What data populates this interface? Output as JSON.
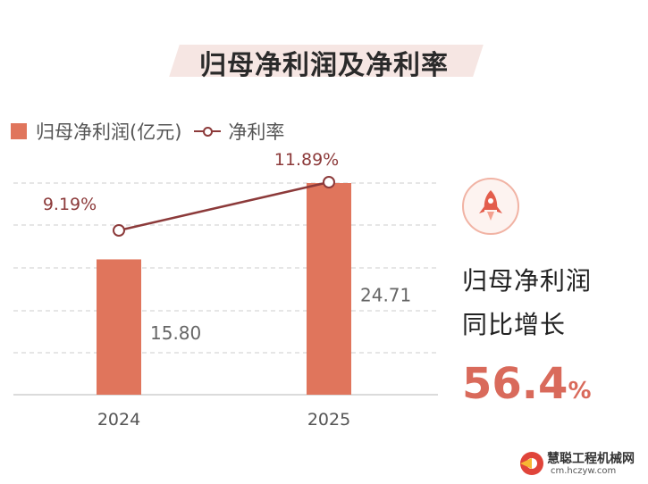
{
  "title": "归母净利润及净利率",
  "legend": {
    "bar_label": "归母净利润(亿元)",
    "line_label": "净利率"
  },
  "side_panel": {
    "label_line1": "归母净利润",
    "label_line2": "同比增长",
    "value": "56.4",
    "value_unit": "%",
    "icon": "rocket-icon"
  },
  "watermark": {
    "name": "慧聪工程机械网",
    "url": "cm.hczyw.com"
  },
  "colors": {
    "bar": "#e0755c",
    "line": "#8c3a3a",
    "line_label": "#8c3a3a",
    "bar_label": "#666666",
    "highlight": "#d96a5b"
  },
  "chart_data": {
    "type": "bar",
    "categories": [
      "2024",
      "2025"
    ],
    "series": [
      {
        "name": "归母净利润(亿元)",
        "type": "bar",
        "values": [
          15.8,
          24.71
        ],
        "labels": [
          "15.80",
          "24.71"
        ]
      },
      {
        "name": "净利率",
        "type": "line",
        "values": [
          9.19,
          11.89
        ],
        "labels": [
          "9.19%",
          "11.89%"
        ]
      }
    ],
    "grid": true,
    "legend_position": "top-left"
  }
}
